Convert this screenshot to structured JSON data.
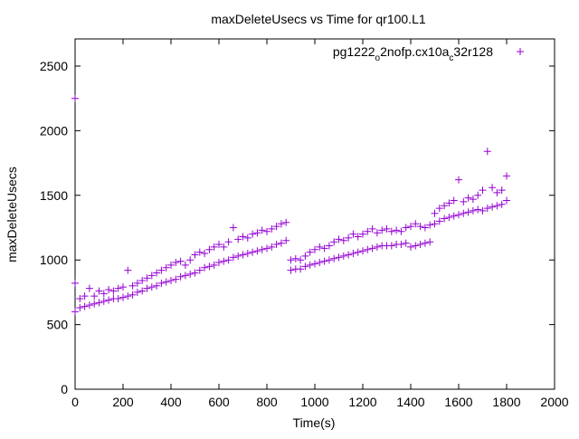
{
  "chart_data": {
    "type": "scatter",
    "title": "maxDeleteUsecs vs Time for qr100.L1",
    "xlabel": "Time(s)",
    "ylabel": "maxDeleteUsecs",
    "xlim": [
      0,
      2000
    ],
    "ylim": [
      0,
      2710
    ],
    "xticks": [
      "0",
      "200",
      "400",
      "600",
      "800",
      "1000",
      "1200",
      "1400",
      "1600",
      "1800",
      "2000"
    ],
    "yticks": [
      "0",
      "500",
      "1000",
      "1500",
      "2000",
      "2500"
    ],
    "grid": false,
    "legend_position": "top-right",
    "series": [
      {
        "name": "pg1222_o2nofp.cx10a_c32r128",
        "legend_parts": [
          "pg1222",
          "o",
          "2nofp.cx10a",
          "c",
          "32r128"
        ],
        "color": "#9400d3",
        "marker": "+",
        "points": [
          [
            0,
            2250
          ],
          [
            0,
            600
          ],
          [
            0,
            820
          ],
          [
            20,
            630
          ],
          [
            20,
            700
          ],
          [
            40,
            640
          ],
          [
            40,
            720
          ],
          [
            60,
            650
          ],
          [
            60,
            780
          ],
          [
            80,
            660
          ],
          [
            80,
            720
          ],
          [
            100,
            670
          ],
          [
            100,
            760
          ],
          [
            120,
            680
          ],
          [
            120,
            740
          ],
          [
            140,
            690
          ],
          [
            140,
            770
          ],
          [
            160,
            700
          ],
          [
            160,
            760
          ],
          [
            180,
            700
          ],
          [
            180,
            780
          ],
          [
            200,
            710
          ],
          [
            200,
            790
          ],
          [
            220,
            720
          ],
          [
            220,
            920
          ],
          [
            240,
            730
          ],
          [
            240,
            800
          ],
          [
            260,
            750
          ],
          [
            260,
            820
          ],
          [
            280,
            760
          ],
          [
            280,
            840
          ],
          [
            300,
            780
          ],
          [
            300,
            860
          ],
          [
            320,
            790
          ],
          [
            320,
            880
          ],
          [
            340,
            800
          ],
          [
            340,
            900
          ],
          [
            360,
            820
          ],
          [
            360,
            920
          ],
          [
            380,
            830
          ],
          [
            380,
            940
          ],
          [
            400,
            840
          ],
          [
            400,
            960
          ],
          [
            420,
            850
          ],
          [
            420,
            980
          ],
          [
            440,
            870
          ],
          [
            440,
            990
          ],
          [
            460,
            880
          ],
          [
            460,
            960
          ],
          [
            480,
            890
          ],
          [
            480,
            1000
          ],
          [
            500,
            900
          ],
          [
            500,
            1040
          ],
          [
            520,
            920
          ],
          [
            520,
            1060
          ],
          [
            540,
            940
          ],
          [
            540,
            1050
          ],
          [
            560,
            950
          ],
          [
            560,
            1080
          ],
          [
            580,
            960
          ],
          [
            580,
            1100
          ],
          [
            600,
            980
          ],
          [
            600,
            1120
          ],
          [
            620,
            990
          ],
          [
            620,
            1100
          ],
          [
            640,
            1000
          ],
          [
            640,
            1140
          ],
          [
            660,
            1020
          ],
          [
            660,
            1250
          ],
          [
            680,
            1030
          ],
          [
            680,
            1160
          ],
          [
            700,
            1040
          ],
          [
            700,
            1180
          ],
          [
            720,
            1050
          ],
          [
            720,
            1170
          ],
          [
            740,
            1060
          ],
          [
            740,
            1200
          ],
          [
            760,
            1070
          ],
          [
            760,
            1210
          ],
          [
            780,
            1080
          ],
          [
            780,
            1230
          ],
          [
            800,
            1090
          ],
          [
            800,
            1220
          ],
          [
            820,
            1100
          ],
          [
            820,
            1240
          ],
          [
            840,
            1120
          ],
          [
            840,
            1260
          ],
          [
            860,
            1130
          ],
          [
            860,
            1280
          ],
          [
            880,
            1150
          ],
          [
            880,
            1290
          ],
          [
            900,
            920
          ],
          [
            900,
            1000
          ],
          [
            920,
            930
          ],
          [
            920,
            1010
          ],
          [
            940,
            930
          ],
          [
            940,
            1000
          ],
          [
            960,
            950
          ],
          [
            960,
            1030
          ],
          [
            980,
            960
          ],
          [
            980,
            1060
          ],
          [
            1000,
            970
          ],
          [
            1000,
            1080
          ],
          [
            1020,
            980
          ],
          [
            1020,
            1100
          ],
          [
            1040,
            990
          ],
          [
            1040,
            1090
          ],
          [
            1060,
            1000
          ],
          [
            1060,
            1110
          ],
          [
            1080,
            1010
          ],
          [
            1080,
            1140
          ],
          [
            1100,
            1020
          ],
          [
            1100,
            1160
          ],
          [
            1120,
            1030
          ],
          [
            1120,
            1150
          ],
          [
            1140,
            1040
          ],
          [
            1140,
            1170
          ],
          [
            1160,
            1050
          ],
          [
            1160,
            1200
          ],
          [
            1180,
            1060
          ],
          [
            1180,
            1180
          ],
          [
            1200,
            1070
          ],
          [
            1200,
            1200
          ],
          [
            1220,
            1080
          ],
          [
            1220,
            1220
          ],
          [
            1240,
            1090
          ],
          [
            1240,
            1240
          ],
          [
            1260,
            1100
          ],
          [
            1260,
            1210
          ],
          [
            1280,
            1110
          ],
          [
            1280,
            1230
          ],
          [
            1300,
            1110
          ],
          [
            1300,
            1240
          ],
          [
            1320,
            1110
          ],
          [
            1320,
            1220
          ],
          [
            1340,
            1120
          ],
          [
            1340,
            1230
          ],
          [
            1360,
            1120
          ],
          [
            1360,
            1220
          ],
          [
            1380,
            1130
          ],
          [
            1380,
            1250
          ],
          [
            1400,
            1100
          ],
          [
            1400,
            1260
          ],
          [
            1420,
            1110
          ],
          [
            1420,
            1280
          ],
          [
            1440,
            1120
          ],
          [
            1440,
            1260
          ],
          [
            1460,
            1130
          ],
          [
            1460,
            1250
          ],
          [
            1480,
            1140
          ],
          [
            1480,
            1270
          ],
          [
            1500,
            1280
          ],
          [
            1500,
            1360
          ],
          [
            1520,
            1300
          ],
          [
            1520,
            1400
          ],
          [
            1540,
            1320
          ],
          [
            1540,
            1420
          ],
          [
            1560,
            1330
          ],
          [
            1560,
            1440
          ],
          [
            1580,
            1340
          ],
          [
            1580,
            1460
          ],
          [
            1600,
            1350
          ],
          [
            1600,
            1620
          ],
          [
            1620,
            1360
          ],
          [
            1620,
            1450
          ],
          [
            1640,
            1370
          ],
          [
            1640,
            1480
          ],
          [
            1660,
            1380
          ],
          [
            1660,
            1470
          ],
          [
            1680,
            1390
          ],
          [
            1680,
            1500
          ],
          [
            1700,
            1380
          ],
          [
            1700,
            1540
          ],
          [
            1720,
            1400
          ],
          [
            1720,
            1840
          ],
          [
            1740,
            1410
          ],
          [
            1740,
            1560
          ],
          [
            1760,
            1420
          ],
          [
            1760,
            1520
          ],
          [
            1780,
            1430
          ],
          [
            1780,
            1540
          ],
          [
            1800,
            1460
          ],
          [
            1800,
            1650
          ]
        ]
      }
    ]
  }
}
